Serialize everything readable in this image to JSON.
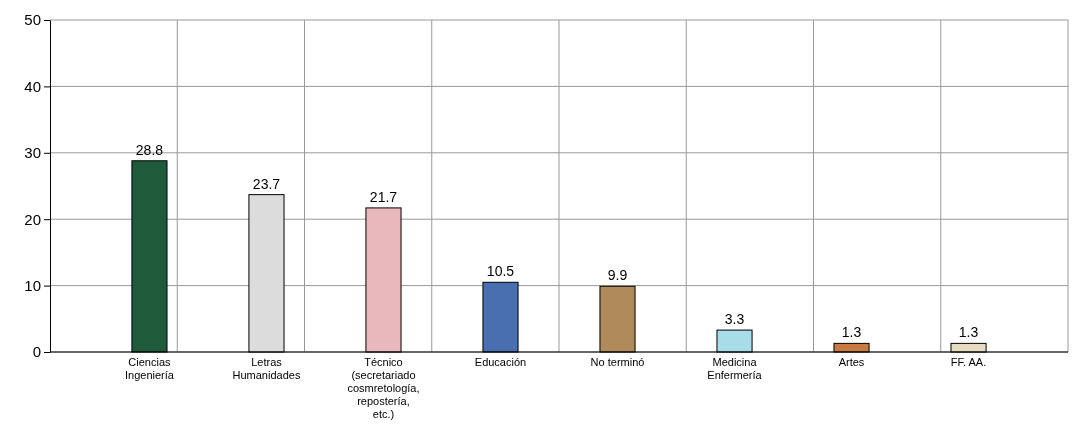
{
  "chart_data": {
    "type": "bar",
    "categories": [
      "Ciencias\nIngeniería",
      "Letras\nHumanidades",
      "Técnico\n(secretariado\ncosmretología,\nrepostería,\netc.)",
      "Educación",
      "No terminó",
      "Medicina\nEnfermería",
      "Artes",
      "FF. AA."
    ],
    "values": [
      28.8,
      23.7,
      21.7,
      10.5,
      9.9,
      3.3,
      1.3,
      1.3
    ],
    "colors": [
      "#1f5a3a",
      "#dcdcdc",
      "#e8b8bc",
      "#4a6fb0",
      "#b08a5a",
      "#a8dce8",
      "#c87a40",
      "#e6dcc0"
    ],
    "ylim": [
      0,
      50
    ],
    "yticks": [
      0,
      10,
      20,
      30,
      40,
      50
    ],
    "grid": true,
    "data_labels": true
  }
}
